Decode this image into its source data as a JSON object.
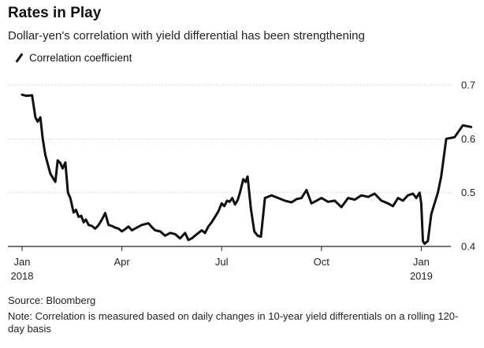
{
  "chart_data": {
    "type": "line",
    "title": "Rates in Play",
    "subtitle": "Dollar-yen's correlation with yield differential has been strengthening",
    "legend": [
      "Correlation coefficient"
    ],
    "ylim": [
      0.4,
      0.7
    ],
    "yticks": [
      "0.7",
      "0.6",
      "0.5",
      "0.4"
    ],
    "ytick_values": [
      0.7,
      0.6,
      0.5,
      0.4
    ],
    "xticks": [
      {
        "label": "Jan",
        "sub": "2018",
        "month": 0
      },
      {
        "label": "Apr",
        "sub": "",
        "month": 3
      },
      {
        "label": "Jul",
        "sub": "",
        "month": 6
      },
      {
        "label": "Oct",
        "sub": "",
        "month": 9
      },
      {
        "label": "Jan",
        "sub": "2019",
        "month": 12
      }
    ],
    "series": [
      {
        "name": "Correlation coefficient",
        "x": [
          0,
          0.13,
          0.3,
          0.4,
          0.47,
          0.55,
          0.62,
          0.7,
          0.85,
          1.0,
          1.07,
          1.15,
          1.22,
          1.3,
          1.38,
          1.45,
          1.55,
          1.62,
          1.7,
          1.78,
          1.85,
          1.92,
          2.0,
          2.1,
          2.2,
          2.3,
          2.4,
          2.5,
          2.6,
          2.7,
          2.8,
          2.9,
          3.0,
          3.1,
          3.2,
          3.3,
          3.45,
          3.6,
          3.8,
          3.9,
          4.0,
          4.15,
          4.3,
          4.45,
          4.6,
          4.75,
          4.9,
          5.0,
          5.1,
          5.2,
          5.3,
          5.4,
          5.5,
          5.6,
          5.7,
          5.8,
          5.9,
          6.0,
          6.08,
          6.16,
          6.24,
          6.32,
          6.4,
          6.48,
          6.55,
          6.65,
          6.72,
          6.78,
          6.88,
          6.98,
          7.08,
          7.18,
          7.3,
          7.5,
          7.7,
          7.9,
          8.1,
          8.25,
          8.4,
          8.55,
          8.7,
          8.85,
          9.0,
          9.2,
          9.4,
          9.6,
          9.8,
          10.0,
          10.2,
          10.4,
          10.6,
          10.8,
          11.0,
          11.15,
          11.3,
          11.45,
          11.6,
          11.75,
          11.85,
          11.95,
          12.0,
          12.05,
          12.1,
          12.2,
          12.3,
          12.4,
          12.5,
          12.6,
          12.75,
          13.0,
          13.25,
          13.5
        ],
        "values": [
          0.682,
          0.68,
          0.681,
          0.64,
          0.632,
          0.64,
          0.6,
          0.57,
          0.535,
          0.52,
          0.56,
          0.555,
          0.545,
          0.556,
          0.5,
          0.49,
          0.463,
          0.468,
          0.455,
          0.457,
          0.445,
          0.45,
          0.44,
          0.438,
          0.433,
          0.44,
          0.45,
          0.462,
          0.44,
          0.438,
          0.435,
          0.433,
          0.428,
          0.432,
          0.437,
          0.43,
          0.435,
          0.44,
          0.443,
          0.436,
          0.43,
          0.428,
          0.42,
          0.425,
          0.423,
          0.415,
          0.425,
          0.412,
          0.415,
          0.42,
          0.425,
          0.43,
          0.425,
          0.437,
          0.445,
          0.455,
          0.465,
          0.48,
          0.475,
          0.485,
          0.483,
          0.49,
          0.478,
          0.486,
          0.5,
          0.525,
          0.52,
          0.53,
          0.47,
          0.428,
          0.42,
          0.418,
          0.49,
          0.495,
          0.49,
          0.485,
          0.482,
          0.488,
          0.49,
          0.505,
          0.48,
          0.485,
          0.49,
          0.483,
          0.485,
          0.473,
          0.49,
          0.487,
          0.495,
          0.492,
          0.498,
          0.485,
          0.48,
          0.475,
          0.49,
          0.485,
          0.495,
          0.498,
          0.49,
          0.5,
          0.48,
          0.41,
          0.405,
          0.41,
          0.46,
          0.48,
          0.5,
          0.53,
          0.6,
          0.603,
          0.625,
          0.622
        ]
      }
    ]
  },
  "footer": {
    "source": "Source: Bloomberg",
    "note": "Note: Correlation is measured based on daily changes in 10-year yield differentials on a rolling 120-day basis"
  },
  "colors": {
    "line": "#111111",
    "grid": "#c8c8c8",
    "axis": "#222222"
  }
}
